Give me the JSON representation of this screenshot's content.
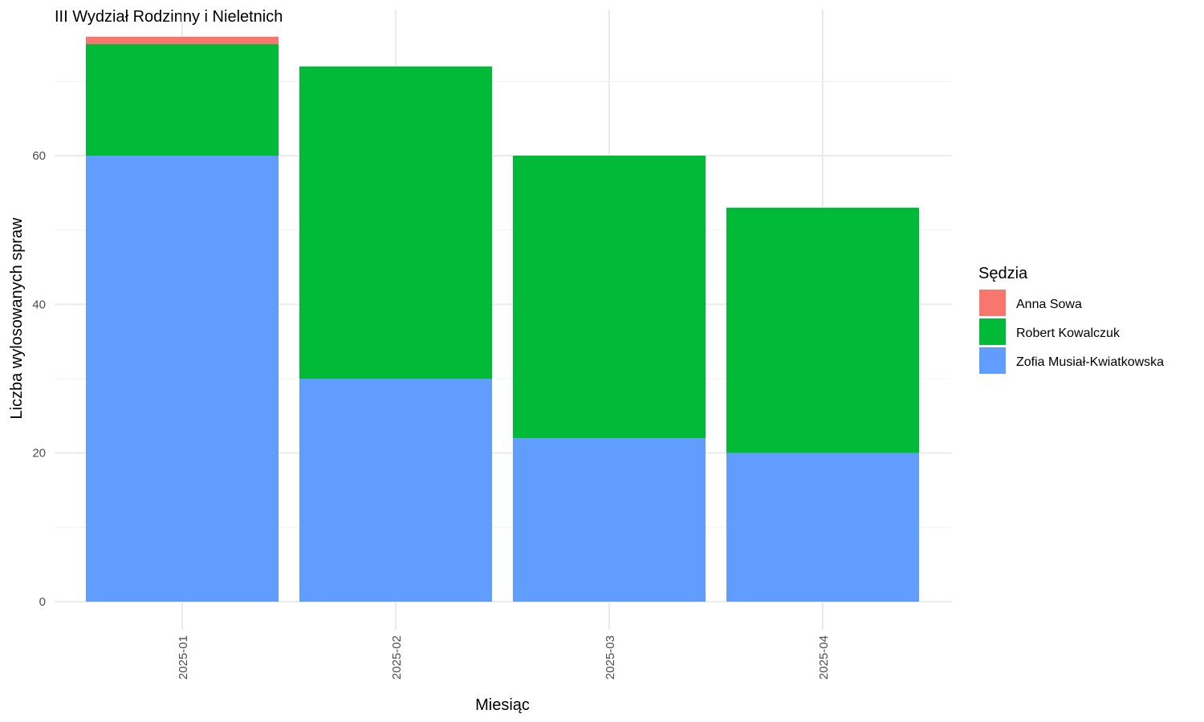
{
  "chart_data": {
    "type": "bar",
    "stacked": true,
    "title": "III Wydział Rodzinny i Nieletnich",
    "xlabel": "Miesiąc",
    "ylabel": "Liczba wylosowanych spraw",
    "categories": [
      "2025-01",
      "2025-02",
      "2025-03",
      "2025-04"
    ],
    "series": [
      {
        "name": "Zofia Musiał-Kwiatkowska",
        "color": "#619CFF",
        "values": [
          60,
          30,
          22,
          20
        ]
      },
      {
        "name": "Robert Kowalczuk",
        "color": "#00BA38",
        "values": [
          15,
          42,
          38,
          33
        ]
      },
      {
        "name": "Anna Sowa",
        "color": "#F8766D",
        "values": [
          1,
          0,
          0,
          0
        ]
      }
    ],
    "legend_title": "Sędzia",
    "legend_order": [
      "Anna Sowa",
      "Robert Kowalczuk",
      "Zofia Musiał-Kwiatkowska"
    ],
    "legend_position": "right",
    "ylim": [
      0,
      76
    ],
    "yticks": [
      0,
      20,
      40,
      60
    ],
    "grid": true
  }
}
